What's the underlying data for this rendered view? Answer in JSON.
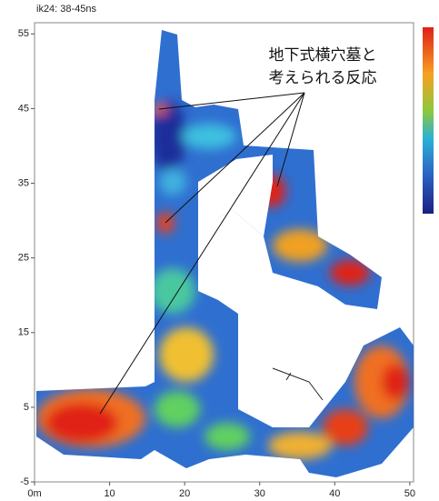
{
  "chart_data": {
    "type": "map",
    "title": "ik24: 38-45ns",
    "annotation": [
      "地下式横穴墓と",
      "考えられる反応"
    ],
    "xlim": [
      0,
      50.5
    ],
    "ylim": [
      -5,
      56.5
    ],
    "xticks": [
      {
        "value": 0,
        "label": "0m"
      },
      10,
      20,
      30,
      40,
      50
    ],
    "yticks": [
      -5,
      5,
      15,
      25,
      35,
      45,
      55
    ]
  }
}
